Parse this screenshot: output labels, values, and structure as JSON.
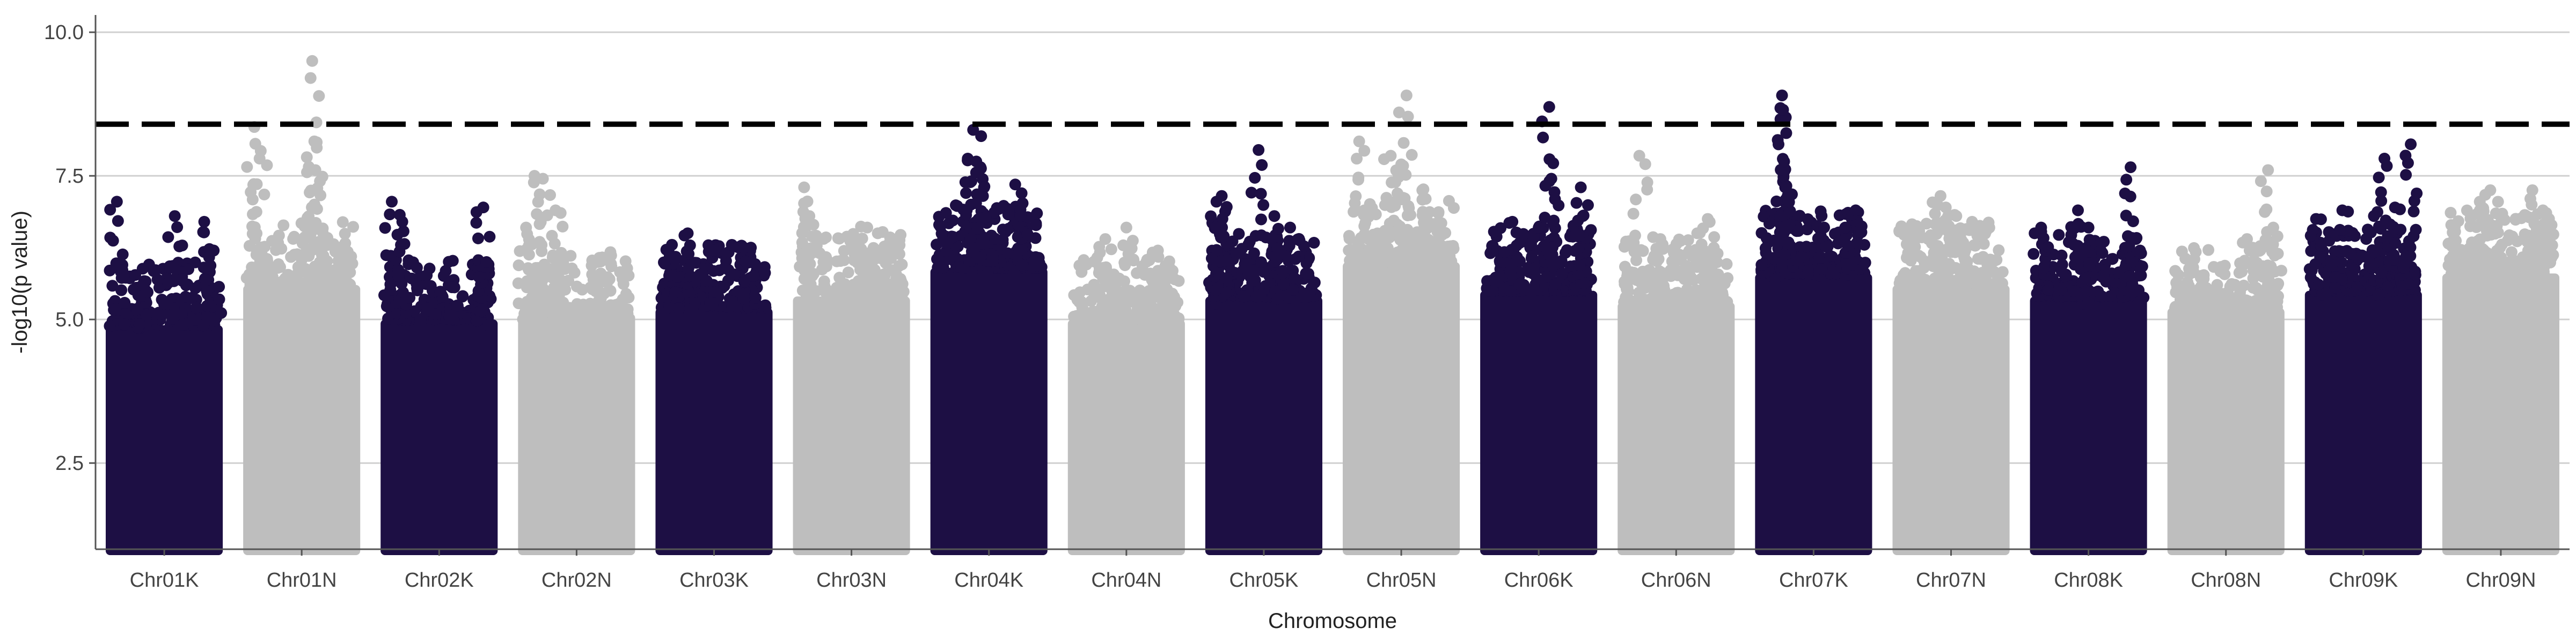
{
  "chart_data": {
    "type": "scatter",
    "subtype": "manhattan",
    "title": "",
    "xlabel": "Chromosome",
    "ylabel": "-log10(p value)",
    "ylim": [
      1.0,
      10.3
    ],
    "y_ticks": [
      2.5,
      5.0,
      7.5,
      10.0
    ],
    "y_tick_labels": [
      "2.5",
      "5.0",
      "7.5",
      "10.0"
    ],
    "grid": "horizontal major lines",
    "significance_threshold": 8.4,
    "threshold_style": "dashed black line",
    "colors": {
      "odd": "#1d0f44",
      "even": "#bebebe",
      "threshold": "#000000",
      "grid": "#d0d0d0",
      "axis": "#555555"
    },
    "categories": [
      "Chr01K",
      "Chr01N",
      "Chr02K",
      "Chr02N",
      "Chr03K",
      "Chr03N",
      "Chr04K",
      "Chr04N",
      "Chr05K",
      "Chr05N",
      "Chr06K",
      "Chr06N",
      "Chr07K",
      "Chr07N",
      "Chr08K",
      "Chr08N",
      "Chr09K",
      "Chr09N"
    ],
    "series": [
      {
        "category": "Chr01K",
        "dense_top": 4.9,
        "peaks": [
          [
            0.05,
            7.05
          ],
          [
            0.3,
            5.6
          ],
          [
            0.6,
            6.8
          ],
          [
            0.88,
            6.7
          ],
          [
            0.97,
            6.2
          ]
        ]
      },
      {
        "category": "Chr01N",
        "dense_top": 5.6,
        "peaks": [
          [
            0.05,
            8.35
          ],
          [
            0.1,
            7.8
          ],
          [
            0.6,
            9.5
          ],
          [
            0.62,
            8.1
          ],
          [
            0.63,
            7.6
          ],
          [
            0.8,
            6.3
          ]
        ]
      },
      {
        "category": "Chr02K",
        "dense_top": 5.0,
        "peaks": [
          [
            0.05,
            7.05
          ],
          [
            0.15,
            6.7
          ],
          [
            0.92,
            6.95
          ],
          [
            0.95,
            6.0
          ]
        ]
      },
      {
        "category": "Chr02N",
        "dense_top": 5.1,
        "peaks": [
          [
            0.02,
            6.6
          ],
          [
            0.1,
            7.5
          ],
          [
            0.18,
            7.45
          ],
          [
            0.3,
            6.9
          ],
          [
            0.7,
            6.0
          ]
        ]
      },
      {
        "category": "Chr03K",
        "dense_top": 5.2,
        "peaks": [
          [
            0.1,
            6.3
          ],
          [
            0.25,
            6.5
          ],
          [
            0.5,
            6.2
          ],
          [
            0.85,
            6.25
          ]
        ]
      },
      {
        "category": "Chr03N",
        "dense_top": 5.4,
        "peaks": [
          [
            0.05,
            7.3
          ],
          [
            0.1,
            6.8
          ],
          [
            0.65,
            6.6
          ],
          [
            0.75,
            6.5
          ]
        ]
      },
      {
        "category": "Chr04K",
        "dense_top": 5.9,
        "peaks": [
          [
            0.35,
            8.3
          ],
          [
            0.38,
            7.75
          ],
          [
            0.42,
            7.65
          ],
          [
            0.75,
            7.35
          ],
          [
            0.8,
            6.8
          ]
        ]
      },
      {
        "category": "Chr04N",
        "dense_top": 5.0,
        "peaks": [
          [
            0.3,
            6.4
          ],
          [
            0.5,
            6.6
          ],
          [
            0.8,
            6.2
          ]
        ]
      },
      {
        "category": "Chr05K",
        "dense_top": 5.4,
        "peaks": [
          [
            0.05,
            7.05
          ],
          [
            0.1,
            7.15
          ],
          [
            0.45,
            7.95
          ],
          [
            0.6,
            6.8
          ],
          [
            0.75,
            6.6
          ]
        ]
      },
      {
        "category": "Chr05N",
        "dense_top": 6.0,
        "peaks": [
          [
            0.1,
            8.1
          ],
          [
            0.4,
            7.85
          ],
          [
            0.5,
            7.7
          ],
          [
            0.55,
            8.9
          ],
          [
            0.7,
            7.25
          ]
        ]
      },
      {
        "category": "Chr06K",
        "dense_top": 5.5,
        "peaks": [
          [
            0.25,
            6.7
          ],
          [
            0.5,
            6.6
          ],
          [
            0.6,
            8.7
          ],
          [
            0.62,
            7.45
          ],
          [
            0.9,
            7.3
          ],
          [
            0.92,
            6.8
          ]
        ]
      },
      {
        "category": "Chr06N",
        "dense_top": 5.3,
        "peaks": [
          [
            0.15,
            7.85
          ],
          [
            0.35,
            6.4
          ],
          [
            0.7,
            6.5
          ],
          [
            0.8,
            6.75
          ]
        ]
      },
      {
        "category": "Chr07K",
        "dense_top": 5.8,
        "peaks": [
          [
            0.2,
            8.9
          ],
          [
            0.21,
            8.65
          ],
          [
            0.22,
            7.75
          ],
          [
            0.23,
            7.3
          ],
          [
            0.6,
            6.6
          ],
          [
            0.8,
            6.6
          ],
          [
            0.9,
            6.9
          ]
        ]
      },
      {
        "category": "Chr07N",
        "dense_top": 5.6,
        "peaks": [
          [
            0.4,
            7.15
          ],
          [
            0.45,
            6.95
          ],
          [
            0.55,
            6.8
          ],
          [
            0.7,
            6.7
          ]
        ]
      },
      {
        "category": "Chr08K",
        "dense_top": 5.4,
        "peaks": [
          [
            0.05,
            6.6
          ],
          [
            0.4,
            6.9
          ],
          [
            0.5,
            6.6
          ],
          [
            0.9,
            7.65
          ],
          [
            0.95,
            6.4
          ]
        ]
      },
      {
        "category": "Chr08N",
        "dense_top": 5.2,
        "peaks": [
          [
            0.2,
            6.05
          ],
          [
            0.7,
            6.4
          ],
          [
            0.9,
            7.6
          ],
          [
            0.95,
            6.6
          ]
        ]
      },
      {
        "category": "Chr09K",
        "dense_top": 5.5,
        "peaks": [
          [
            0.05,
            6.75
          ],
          [
            0.3,
            6.9
          ],
          [
            0.6,
            6.8
          ],
          [
            0.7,
            7.8
          ],
          [
            0.8,
            6.95
          ],
          [
            0.95,
            8.05
          ]
        ]
      },
      {
        "category": "Chr09N",
        "dense_top": 5.8,
        "peaks": [
          [
            0.3,
            7.05
          ],
          [
            0.4,
            7.25
          ],
          [
            0.8,
            7.25
          ],
          [
            0.9,
            6.9
          ]
        ]
      }
    ]
  }
}
